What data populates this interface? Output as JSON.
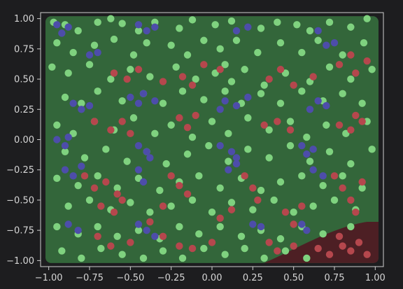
{
  "chart_data": {
    "type": "scatter",
    "title": "",
    "xlabel": "",
    "ylabel": "",
    "xlim": [
      -1.05,
      1.05
    ],
    "ylim": [
      -1.05,
      1.05
    ],
    "grid": false,
    "legend": "none",
    "x_ticks": [
      "−1.00",
      "−0.75",
      "−0.50",
      "−0.25",
      "0.00",
      "0.25",
      "0.50",
      "0.75",
      "1.00"
    ],
    "x_tick_values": [
      -1.0,
      -0.75,
      -0.5,
      -0.25,
      0.0,
      0.25,
      0.5,
      0.75,
      1.0
    ],
    "y_ticks": [
      "1.00",
      "0.75",
      "0.50",
      "0.25",
      "0.00",
      "−0.25",
      "−0.50",
      "−0.75",
      "−1.00"
    ],
    "y_tick_values": [
      1.0,
      0.75,
      0.5,
      0.25,
      0.0,
      -0.25,
      -0.5,
      -0.75,
      -1.0
    ],
    "colors": {
      "background": "#1d1d1f",
      "plot_region": "#33663a",
      "plot_region_corner": "#4d1f24",
      "frame": "#cfcfcf",
      "class_green": "#7fd27f",
      "class_red": "#b5474d",
      "class_blue": "#4d4daa"
    },
    "series": [
      {
        "color": "#7fd27f",
        "points": [
          [
            -0.97,
            0.97
          ],
          [
            -0.9,
            0.95
          ],
          [
            -0.82,
            0.9
          ],
          [
            -0.7,
            0.97
          ],
          [
            -0.62,
            1.0
          ],
          [
            -0.55,
            0.96
          ],
          [
            -0.45,
            0.9
          ],
          [
            -0.35,
            0.97
          ],
          [
            -0.2,
            0.92
          ],
          [
            -0.12,
            0.99
          ],
          [
            0.02,
            0.95
          ],
          [
            0.12,
            0.98
          ],
          [
            0.3,
            0.92
          ],
          [
            0.4,
            0.97
          ],
          [
            0.52,
            0.95
          ],
          [
            0.6,
            0.9
          ],
          [
            0.72,
            0.97
          ],
          [
            0.85,
            0.93
          ],
          [
            0.95,
            1.0
          ],
          [
            -0.95,
            0.8
          ],
          [
            -0.85,
            0.72
          ],
          [
            -0.72,
            0.78
          ],
          [
            -0.6,
            0.83
          ],
          [
            -0.48,
            0.7
          ],
          [
            -0.4,
            0.8
          ],
          [
            -0.25,
            0.78
          ],
          [
            -0.15,
            0.7
          ],
          [
            -0.05,
            0.82
          ],
          [
            0.05,
            0.75
          ],
          [
            0.15,
            0.82
          ],
          [
            0.28,
            0.72
          ],
          [
            0.42,
            0.8
          ],
          [
            0.55,
            0.72
          ],
          [
            0.65,
            0.82
          ],
          [
            0.8,
            0.7
          ],
          [
            0.93,
            0.8
          ],
          [
            -0.98,
            0.6
          ],
          [
            -0.88,
            0.55
          ],
          [
            -0.75,
            0.62
          ],
          [
            -0.62,
            0.5
          ],
          [
            -0.5,
            0.58
          ],
          [
            -0.38,
            0.52
          ],
          [
            -0.22,
            0.6
          ],
          [
            -0.1,
            0.5
          ],
          [
            0.02,
            0.55
          ],
          [
            0.08,
            0.62
          ],
          [
            0.12,
            0.48
          ],
          [
            0.2,
            0.58
          ],
          [
            0.32,
            0.45
          ],
          [
            0.45,
            0.55
          ],
          [
            0.6,
            0.48
          ],
          [
            0.72,
            0.6
          ],
          [
            0.85,
            0.5
          ],
          [
            0.98,
            0.58
          ],
          [
            -0.9,
            0.35
          ],
          [
            -0.8,
            0.3
          ],
          [
            -0.7,
            0.4
          ],
          [
            -0.55,
            0.32
          ],
          [
            -0.42,
            0.38
          ],
          [
            -0.3,
            0.3
          ],
          [
            -0.18,
            0.4
          ],
          [
            -0.05,
            0.33
          ],
          [
            0.08,
            0.4
          ],
          [
            0.18,
            0.3
          ],
          [
            0.3,
            0.38
          ],
          [
            0.42,
            0.3
          ],
          [
            0.55,
            0.4
          ],
          [
            0.68,
            0.32
          ],
          [
            0.8,
            0.38
          ],
          [
            0.92,
            0.3
          ],
          [
            -0.95,
            0.12
          ],
          [
            -0.85,
            0.05
          ],
          [
            -0.72,
            0.15
          ],
          [
            -0.6,
            0.08
          ],
          [
            -0.48,
            0.18
          ],
          [
            -0.35,
            0.05
          ],
          [
            -0.25,
            0.12
          ],
          [
            -0.12,
            0.02
          ],
          [
            0.0,
            0.15
          ],
          [
            0.1,
            0.05
          ],
          [
            0.22,
            0.18
          ],
          [
            0.35,
            0.08
          ],
          [
            0.48,
            0.15
          ],
          [
            0.58,
            0.02
          ],
          [
            0.7,
            0.12
          ],
          [
            0.82,
            0.05
          ],
          [
            0.95,
            0.15
          ],
          [
            -0.9,
            -0.1
          ],
          [
            -0.78,
            -0.15
          ],
          [
            -0.65,
            -0.08
          ],
          [
            -0.52,
            -0.18
          ],
          [
            -0.4,
            -0.1
          ],
          [
            -0.28,
            -0.2
          ],
          [
            -0.15,
            -0.12
          ],
          [
            -0.02,
            -0.05
          ],
          [
            0.1,
            -0.18
          ],
          [
            0.22,
            -0.08
          ],
          [
            0.35,
            -0.15
          ],
          [
            0.48,
            -0.05
          ],
          [
            0.6,
            -0.18
          ],
          [
            0.72,
            -0.1
          ],
          [
            0.85,
            -0.2
          ],
          [
            0.98,
            -0.08
          ],
          [
            -0.95,
            -0.32
          ],
          [
            -0.82,
            -0.38
          ],
          [
            -0.7,
            -0.3
          ],
          [
            -0.58,
            -0.4
          ],
          [
            -0.45,
            -0.32
          ],
          [
            -0.32,
            -0.42
          ],
          [
            -0.2,
            -0.35
          ],
          [
            -0.08,
            -0.3
          ],
          [
            0.05,
            -0.4
          ],
          [
            0.18,
            -0.32
          ],
          [
            0.3,
            -0.42
          ],
          [
            0.42,
            -0.35
          ],
          [
            0.55,
            -0.3
          ],
          [
            0.68,
            -0.38
          ],
          [
            0.8,
            -0.3
          ],
          [
            0.92,
            -0.4
          ],
          [
            -0.88,
            -0.55
          ],
          [
            -0.75,
            -0.5
          ],
          [
            -0.62,
            -0.58
          ],
          [
            -0.5,
            -0.52
          ],
          [
            -0.38,
            -0.6
          ],
          [
            -0.25,
            -0.55
          ],
          [
            -0.12,
            -0.5
          ],
          [
            0.0,
            -0.6
          ],
          [
            0.12,
            -0.52
          ],
          [
            0.25,
            -0.58
          ],
          [
            0.38,
            -0.5
          ],
          [
            0.5,
            -0.6
          ],
          [
            0.62,
            -0.55
          ],
          [
            0.75,
            -0.5
          ],
          [
            0.88,
            -0.58
          ],
          [
            -0.95,
            -0.72
          ],
          [
            -0.82,
            -0.78
          ],
          [
            -0.7,
            -0.72
          ],
          [
            -0.58,
            -0.8
          ],
          [
            -0.45,
            -0.75
          ],
          [
            -0.32,
            -0.82
          ],
          [
            -0.2,
            -0.72
          ],
          [
            -0.08,
            -0.78
          ],
          [
            0.05,
            -0.72
          ],
          [
            0.18,
            -0.8
          ],
          [
            0.3,
            -0.75
          ],
          [
            0.42,
            -0.82
          ],
          [
            0.55,
            -0.72
          ],
          [
            0.68,
            -0.78
          ],
          [
            0.85,
            -0.72
          ],
          [
            -0.92,
            -0.92
          ],
          [
            -0.8,
            -0.98
          ],
          [
            -0.68,
            -0.9
          ],
          [
            -0.55,
            -0.95
          ],
          [
            -0.42,
            -0.98
          ],
          [
            -0.3,
            -0.92
          ],
          [
            -0.18,
            -0.98
          ],
          [
            -0.05,
            -0.9
          ],
          [
            0.08,
            -0.95
          ],
          [
            0.2,
            -0.9
          ],
          [
            0.32,
            -0.98
          ],
          [
            0.45,
            -0.92
          ],
          [
            0.58,
            -0.98
          ]
        ]
      },
      {
        "color": "#b5474d",
        "points": [
          [
            -0.6,
            0.55
          ],
          [
            -0.52,
            0.5
          ],
          [
            -0.45,
            0.58
          ],
          [
            -0.3,
            0.48
          ],
          [
            -0.18,
            0.52
          ],
          [
            -0.12,
            0.45
          ],
          [
            0.35,
            0.5
          ],
          [
            0.42,
            0.58
          ],
          [
            0.5,
            0.45
          ],
          [
            0.62,
            0.52
          ],
          [
            0.88,
            0.55
          ],
          [
            0.95,
            0.65
          ],
          [
            0.85,
            0.7
          ],
          [
            0.78,
            0.62
          ],
          [
            0.05,
            0.58
          ],
          [
            -0.05,
            0.62
          ],
          [
            -0.72,
            0.15
          ],
          [
            -0.62,
            0.08
          ],
          [
            -0.55,
            0.15
          ],
          [
            -0.5,
            0.05
          ],
          [
            -0.2,
            0.18
          ],
          [
            -0.15,
            0.1
          ],
          [
            -0.1,
            0.2
          ],
          [
            0.32,
            0.12
          ],
          [
            0.4,
            0.15
          ],
          [
            0.48,
            0.08
          ],
          [
            0.78,
            0.12
          ],
          [
            0.85,
            0.08
          ],
          [
            0.88,
            0.2
          ],
          [
            0.92,
            0.15
          ],
          [
            -0.78,
            -0.3
          ],
          [
            -0.72,
            -0.4
          ],
          [
            -0.65,
            -0.35
          ],
          [
            -0.58,
            -0.45
          ],
          [
            -0.25,
            -0.3
          ],
          [
            -0.2,
            -0.38
          ],
          [
            -0.15,
            -0.45
          ],
          [
            0.2,
            -0.3
          ],
          [
            0.25,
            -0.4
          ],
          [
            0.28,
            -0.5
          ],
          [
            0.75,
            -0.3
          ],
          [
            0.8,
            -0.4
          ],
          [
            0.85,
            -0.5
          ],
          [
            0.92,
            -0.35
          ],
          [
            0.88,
            -0.6
          ],
          [
            -0.68,
            -0.55
          ],
          [
            -0.6,
            -0.6
          ],
          [
            -0.55,
            -0.5
          ],
          [
            -0.38,
            -0.68
          ],
          [
            -0.3,
            -0.55
          ],
          [
            0.05,
            -0.65
          ],
          [
            0.12,
            -0.58
          ],
          [
            0.45,
            -0.6
          ],
          [
            0.5,
            -0.7
          ],
          [
            0.55,
            -0.55
          ],
          [
            -0.7,
            -0.8
          ],
          [
            -0.62,
            -0.88
          ],
          [
            -0.5,
            -0.85
          ],
          [
            -0.3,
            -0.8
          ],
          [
            -0.2,
            -0.88
          ],
          [
            -0.12,
            -0.9
          ],
          [
            0.0,
            -0.85
          ],
          [
            0.35,
            -0.85
          ],
          [
            0.4,
            -0.92
          ],
          [
            0.5,
            -0.88
          ],
          [
            0.65,
            -0.9
          ],
          [
            0.72,
            -0.95
          ],
          [
            0.8,
            -0.88
          ],
          [
            0.85,
            -0.92
          ],
          [
            0.9,
            -0.85
          ],
          [
            0.95,
            -0.95
          ],
          [
            0.78,
            -0.8
          ]
        ]
      },
      {
        "color": "#4d4daa",
        "points": [
          [
            -0.95,
            0.95
          ],
          [
            -0.92,
            0.88
          ],
          [
            -0.88,
            0.93
          ],
          [
            -0.75,
            0.7
          ],
          [
            -0.7,
            0.72
          ],
          [
            -0.45,
            0.95
          ],
          [
            -0.4,
            0.9
          ],
          [
            -0.35,
            0.93
          ],
          [
            0.15,
            0.9
          ],
          [
            0.22,
            0.93
          ],
          [
            0.65,
            0.9
          ],
          [
            0.7,
            0.78
          ],
          [
            0.75,
            0.8
          ],
          [
            -0.5,
            0.35
          ],
          [
            -0.45,
            0.3
          ],
          [
            -0.42,
            0.38
          ],
          [
            -0.35,
            0.32
          ],
          [
            0.05,
            0.25
          ],
          [
            0.08,
            0.32
          ],
          [
            0.15,
            0.28
          ],
          [
            0.22,
            0.35
          ],
          [
            0.6,
            0.25
          ],
          [
            0.65,
            0.32
          ],
          [
            0.7,
            0.28
          ],
          [
            -0.85,
            0.3
          ],
          [
            -0.8,
            0.25
          ],
          [
            -0.75,
            0.28
          ],
          [
            -0.95,
            0.0
          ],
          [
            -0.9,
            -0.05
          ],
          [
            -0.88,
            0.02
          ],
          [
            -0.45,
            -0.05
          ],
          [
            -0.4,
            -0.1
          ],
          [
            -0.38,
            -0.15
          ],
          [
            0.05,
            -0.05
          ],
          [
            0.12,
            -0.1
          ],
          [
            0.15,
            -0.15
          ],
          [
            0.55,
            -0.05
          ],
          [
            0.58,
            -0.12
          ],
          [
            0.62,
            -0.08
          ],
          [
            -0.9,
            -0.25
          ],
          [
            -0.85,
            -0.3
          ],
          [
            -0.8,
            -0.22
          ],
          [
            -0.45,
            -0.25
          ],
          [
            -0.42,
            -0.35
          ],
          [
            0.1,
            -0.25
          ],
          [
            0.15,
            -0.2
          ],
          [
            0.62,
            -0.25
          ],
          [
            0.68,
            -0.3
          ],
          [
            -0.88,
            -0.7
          ],
          [
            -0.82,
            -0.75
          ],
          [
            -0.45,
            -0.7
          ],
          [
            -0.4,
            -0.75
          ],
          [
            -0.35,
            -0.8
          ],
          [
            0.25,
            -0.7
          ],
          [
            0.3,
            -0.72
          ],
          [
            0.55,
            -0.7
          ],
          [
            0.58,
            -0.75
          ]
        ]
      }
    ]
  }
}
